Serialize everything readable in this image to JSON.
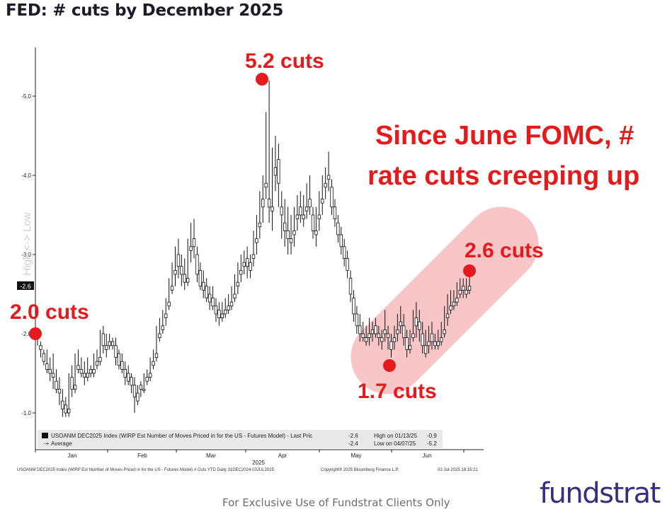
{
  "title": "FED: # cuts by December 2025",
  "chart_data": {
    "type": "candlestick",
    "title": "FED: # cuts by December 2025",
    "ylabel": "High <-> Low",
    "y_ticks": [
      "-5.0",
      "-4.0",
      "-3.0",
      "-2.0",
      "-1.0"
    ],
    "ylim": [
      -5.6,
      -0.5
    ],
    "y_axis_inverted": true,
    "x_tick_labels": [
      "Jan",
      "Feb",
      "Mar",
      "Apr",
      "May",
      "Jun"
    ],
    "year_label": "2025",
    "last_value_tag": "-2.6",
    "series": [
      {
        "name": "USOANM DEC2025 Index (WIRP Est Number of Moves Priced in for the US - Futures Model) - Last Price",
        "ohlc": [
          [
            -2.0,
            -2.05,
            -1.95,
            -1.85
          ],
          [
            -1.85,
            -1.9,
            -1.8,
            -1.7
          ],
          [
            -1.75,
            -1.8,
            -1.65,
            -1.6
          ],
          [
            -1.62,
            -1.8,
            -1.55,
            -1.5
          ],
          [
            -1.55,
            -1.7,
            -1.5,
            -1.4
          ],
          [
            -1.5,
            -1.75,
            -1.45,
            -1.3
          ],
          [
            -1.4,
            -1.55,
            -1.3,
            -1.25
          ],
          [
            -1.3,
            -1.45,
            -1.25,
            -1.1
          ],
          [
            -1.15,
            -1.3,
            -1.05,
            -0.95
          ],
          [
            -1.1,
            -1.2,
            -1.0,
            -0.95
          ],
          [
            -1.05,
            -1.5,
            -1.0,
            -0.95
          ],
          [
            -1.45,
            -1.6,
            -1.3,
            -1.2
          ],
          [
            -1.35,
            -1.75,
            -1.3,
            -1.25
          ],
          [
            -1.6,
            -1.8,
            -1.55,
            -1.5
          ],
          [
            -1.55,
            -1.7,
            -1.5,
            -1.45
          ],
          [
            -1.5,
            -1.65,
            -1.45,
            -1.35
          ],
          [
            -1.5,
            -1.7,
            -1.45,
            -1.4
          ],
          [
            -1.55,
            -1.6,
            -1.5,
            -1.45
          ],
          [
            -1.55,
            -1.75,
            -1.5,
            -1.45
          ],
          [
            -1.65,
            -1.8,
            -1.6,
            -1.55
          ],
          [
            -1.7,
            -2.05,
            -1.65,
            -1.6
          ],
          [
            -2.0,
            -2.1,
            -1.85,
            -1.75
          ],
          [
            -1.85,
            -2.0,
            -1.8,
            -1.7
          ],
          [
            -1.9,
            -2.0,
            -1.85,
            -1.8
          ],
          [
            -1.9,
            -1.95,
            -1.85,
            -1.8
          ],
          [
            -1.85,
            -1.95,
            -1.7,
            -1.6
          ],
          [
            -1.75,
            -1.8,
            -1.6,
            -1.55
          ],
          [
            -1.65,
            -1.75,
            -1.55,
            -1.5
          ],
          [
            -1.55,
            -1.65,
            -1.45,
            -1.35
          ],
          [
            -1.5,
            -1.6,
            -1.4,
            -1.35
          ],
          [
            -1.45,
            -1.5,
            -1.35,
            -1.25
          ],
          [
            -1.35,
            -1.45,
            -1.2,
            -1.0
          ],
          [
            -1.25,
            -1.35,
            -1.15,
            -1.1
          ],
          [
            -1.35,
            -1.4,
            -1.3,
            -1.2
          ],
          [
            -1.3,
            -1.5,
            -1.3,
            -1.25
          ],
          [
            -1.45,
            -1.55,
            -1.4,
            -1.35
          ],
          [
            -1.5,
            -1.7,
            -1.45,
            -1.4
          ],
          [
            -1.65,
            -1.8,
            -1.6,
            -1.55
          ],
          [
            -1.75,
            -2.1,
            -1.7,
            -1.65
          ],
          [
            -2.0,
            -2.2,
            -1.95,
            -1.9
          ],
          [
            -2.1,
            -2.3,
            -2.05,
            -2.0
          ],
          [
            -2.25,
            -2.45,
            -2.2,
            -2.1
          ],
          [
            -2.4,
            -2.7,
            -2.35,
            -2.3
          ],
          [
            -2.6,
            -2.9,
            -2.55,
            -2.5
          ],
          [
            -2.8,
            -3.1,
            -2.75,
            -2.6
          ],
          [
            -3.0,
            -3.2,
            -2.85,
            -2.7
          ],
          [
            -2.85,
            -3.0,
            -2.75,
            -2.6
          ],
          [
            -2.75,
            -2.95,
            -2.65,
            -2.55
          ],
          [
            -2.7,
            -3.2,
            -2.65,
            -2.6
          ],
          [
            -3.1,
            -3.4,
            -3.05,
            -2.9
          ],
          [
            -3.2,
            -3.45,
            -3.1,
            -2.95
          ],
          [
            -3.0,
            -3.1,
            -2.75,
            -2.65
          ],
          [
            -2.8,
            -2.9,
            -2.6,
            -2.55
          ],
          [
            -2.65,
            -2.8,
            -2.55,
            -2.45
          ],
          [
            -2.6,
            -2.7,
            -2.45,
            -2.4
          ],
          [
            -2.5,
            -2.6,
            -2.4,
            -2.3
          ],
          [
            -2.45,
            -2.6,
            -2.35,
            -2.3
          ],
          [
            -2.35,
            -2.45,
            -2.25,
            -2.15
          ],
          [
            -2.3,
            -2.4,
            -2.2,
            -2.1
          ],
          [
            -2.25,
            -2.4,
            -2.2,
            -2.15
          ],
          [
            -2.3,
            -2.45,
            -2.25,
            -2.2
          ],
          [
            -2.35,
            -2.5,
            -2.3,
            -2.25
          ],
          [
            -2.4,
            -2.6,
            -2.35,
            -2.3
          ],
          [
            -2.5,
            -2.75,
            -2.45,
            -2.4
          ],
          [
            -2.65,
            -2.9,
            -2.6,
            -2.5
          ],
          [
            -2.8,
            -3.0,
            -2.75,
            -2.65
          ],
          [
            -2.9,
            -3.05,
            -2.85,
            -2.75
          ],
          [
            -2.95,
            -3.1,
            -2.85,
            -2.7
          ],
          [
            -2.9,
            -3.0,
            -2.8,
            -2.7
          ],
          [
            -3.0,
            -3.3,
            -2.95,
            -2.85
          ],
          [
            -3.2,
            -3.5,
            -3.15,
            -3.0
          ],
          [
            -3.4,
            -3.8,
            -3.35,
            -3.2
          ],
          [
            -3.7,
            -4.0,
            -3.6,
            -3.4
          ],
          [
            -3.9,
            -4.8,
            -3.85,
            -3.7
          ],
          [
            -3.7,
            -5.2,
            -3.6,
            -3.4
          ],
          [
            -3.6,
            -4.35,
            -3.55,
            -3.3
          ],
          [
            -4.1,
            -4.5,
            -4.0,
            -3.8
          ],
          [
            -4.2,
            -4.4,
            -3.9,
            -3.6
          ],
          [
            -3.6,
            -3.8,
            -3.5,
            -3.2
          ],
          [
            -3.4,
            -3.7,
            -3.3,
            -3.1
          ],
          [
            -3.3,
            -3.6,
            -3.2,
            -3.0
          ],
          [
            -3.2,
            -3.5,
            -3.15,
            -3.0
          ],
          [
            -3.3,
            -3.6,
            -3.25,
            -3.1
          ],
          [
            -3.5,
            -3.75,
            -3.45,
            -3.3
          ],
          [
            -3.6,
            -3.8,
            -3.5,
            -3.4
          ],
          [
            -3.5,
            -3.75,
            -3.45,
            -3.35
          ],
          [
            -3.6,
            -3.9,
            -3.55,
            -3.45
          ],
          [
            -3.7,
            -4.0,
            -3.6,
            -3.5
          ],
          [
            -3.5,
            -3.6,
            -3.3,
            -3.2
          ],
          [
            -3.3,
            -3.6,
            -3.25,
            -3.1
          ],
          [
            -3.5,
            -3.8,
            -3.45,
            -3.3
          ],
          [
            -3.7,
            -4.0,
            -3.65,
            -3.5
          ],
          [
            -3.9,
            -4.1,
            -3.85,
            -3.7
          ],
          [
            -4.0,
            -4.3,
            -3.95,
            -3.8
          ],
          [
            -3.85,
            -3.95,
            -3.6,
            -3.5
          ],
          [
            -3.6,
            -3.7,
            -3.45,
            -3.35
          ],
          [
            -3.4,
            -3.5,
            -3.25,
            -3.15
          ],
          [
            -3.25,
            -3.35,
            -3.1,
            -3.0
          ],
          [
            -3.1,
            -3.2,
            -2.95,
            -2.85
          ],
          [
            -2.95,
            -3.05,
            -2.8,
            -2.7
          ],
          [
            -2.7,
            -2.8,
            -2.5,
            -2.4
          ],
          [
            -2.45,
            -2.55,
            -2.25,
            -2.15
          ],
          [
            -2.25,
            -2.35,
            -2.1,
            -2.0
          ],
          [
            -2.1,
            -2.25,
            -2.0,
            -1.9
          ],
          [
            -2.0,
            -2.15,
            -1.95,
            -1.9
          ],
          [
            -1.95,
            -2.1,
            -1.9,
            -1.85
          ],
          [
            -2.0,
            -2.2,
            -1.95,
            -1.85
          ],
          [
            -2.05,
            -2.15,
            -2.0,
            -1.9
          ],
          [
            -2.1,
            -2.2,
            -2.0,
            -1.95
          ],
          [
            -2.0,
            -2.1,
            -1.95,
            -1.85
          ],
          [
            -1.95,
            -2.05,
            -1.9,
            -1.8
          ],
          [
            -2.05,
            -2.3,
            -2.0,
            -1.9
          ],
          [
            -2.0,
            -2.1,
            -1.95,
            -1.8
          ],
          [
            -1.9,
            -2.0,
            -1.8,
            -1.7
          ],
          [
            -1.95,
            -2.1,
            -1.9,
            -1.8
          ],
          [
            -2.05,
            -2.25,
            -2.0,
            -1.9
          ],
          [
            -2.15,
            -2.35,
            -2.1,
            -2.0
          ],
          [
            -2.1,
            -2.25,
            -1.95,
            -1.85
          ],
          [
            -1.95,
            -2.05,
            -1.8,
            -1.7
          ],
          [
            -1.85,
            -2.05,
            -1.8,
            -1.75
          ],
          [
            -2.0,
            -2.3,
            -1.95,
            -1.9
          ],
          [
            -2.2,
            -2.4,
            -2.1,
            -1.95
          ],
          [
            -2.15,
            -2.3,
            -2.05,
            -1.9
          ],
          [
            -2.0,
            -2.15,
            -1.85,
            -1.75
          ],
          [
            -1.85,
            -2.05,
            -1.75,
            -1.7
          ],
          [
            -1.9,
            -2.1,
            -1.85,
            -1.75
          ],
          [
            -2.0,
            -2.15,
            -1.9,
            -1.8
          ],
          [
            -1.9,
            -2.0,
            -1.85,
            -1.8
          ],
          [
            -1.9,
            -2.05,
            -1.85,
            -1.8
          ],
          [
            -1.95,
            -2.15,
            -1.9,
            -1.85
          ],
          [
            -2.05,
            -2.35,
            -2.0,
            -1.95
          ],
          [
            -2.25,
            -2.5,
            -2.2,
            -2.1
          ],
          [
            -2.35,
            -2.55,
            -2.3,
            -2.25
          ],
          [
            -2.4,
            -2.55,
            -2.35,
            -2.3
          ],
          [
            -2.45,
            -2.65,
            -2.4,
            -2.35
          ],
          [
            -2.55,
            -2.7,
            -2.5,
            -2.45
          ],
          [
            -2.6,
            -2.7,
            -2.55,
            -2.45
          ],
          [
            -2.55,
            -2.7,
            -2.5,
            -2.45
          ],
          [
            -2.6,
            -2.75,
            -2.55,
            -2.5
          ]
        ]
      },
      {
        "name": "Average"
      }
    ],
    "annotations": [
      {
        "text": "2.0 cuts",
        "value": -2.0
      },
      {
        "text": "5.2 cuts",
        "value": -5.2
      },
      {
        "text": "1.7 cuts",
        "value": -1.7
      },
      {
        "text": "2.6 cuts",
        "value": -2.6
      },
      {
        "text": "Since June FOMC, #",
        "kind": "callout"
      },
      {
        "text": "rate cuts creeping up",
        "kind": "callout"
      }
    ]
  },
  "legend": {
    "line1": "USOANM DEC2025 Index (WIRP Est Number of Moves Priced in for the US - Futures Model) - Last Pric",
    "line1_value": "-2.6",
    "line2": "Average",
    "line2_value": "-2.4",
    "high": "High on 01/13/25",
    "high_value": "-0.9",
    "low": "Low on 04/07/25",
    "low_value": "-5.2"
  },
  "source_line": "USOANM DEC2025 Index (WIRP Est Number of Moves Priced in for the US - Futures Model) # Cuts YTD  Daily 31DEC2024-03JUL2025",
  "copyright": "Copyright® 2025 Bloomberg Finance L.P.",
  "timestamp": "02-Jul-2025 18:15:21",
  "footer": "For Exclusive Use of Fundstrat Clients Only",
  "logo": "fundstrat",
  "colors": {
    "annotation": "#e41a1c",
    "highlight": "#f8c6c6",
    "candle": "#111111"
  }
}
